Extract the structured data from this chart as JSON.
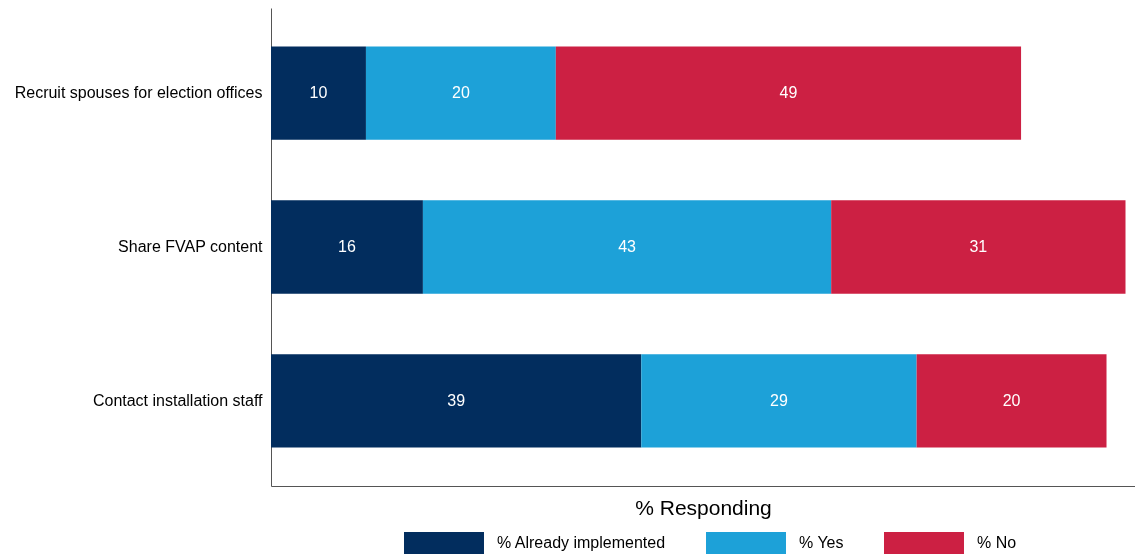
{
  "chart_data": {
    "type": "bar",
    "orientation": "horizontal",
    "stacked": true,
    "categories": [
      "Recruit spouses for election offices",
      "Share FVAP content",
      "Contact installation staff"
    ],
    "series": [
      {
        "name": "% Already implemented",
        "color": "#022d5e",
        "values": [
          10,
          16,
          39
        ]
      },
      {
        "name": "% Yes",
        "color": "#1da1d8",
        "values": [
          20,
          43,
          29
        ]
      },
      {
        "name": "% No",
        "color": "#cc2043",
        "values": [
          49,
          31,
          20
        ]
      }
    ],
    "xlabel": "% Responding",
    "xlim": [
      0,
      91
    ],
    "tick_labels": "y",
    "data_labels": true,
    "legend": "bottom"
  }
}
